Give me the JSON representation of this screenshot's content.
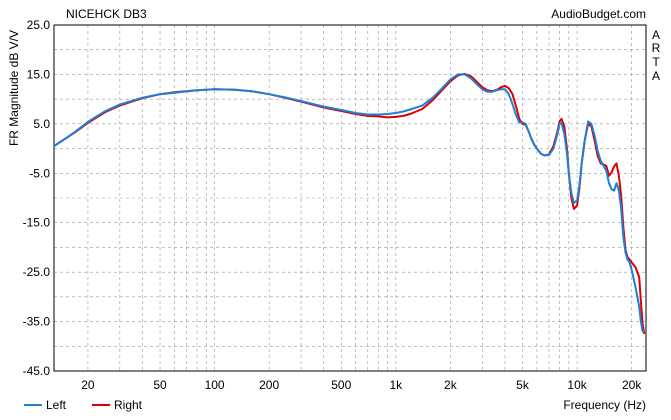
{
  "chart_data": {
    "type": "line",
    "title": "NICEHCK DB3",
    "watermark": "AudioBudget.com",
    "side_label": [
      "A",
      "R",
      "T",
      "A"
    ],
    "xlabel": "Frequency (Hz)",
    "ylabel": "FR Magnitude dB V/V",
    "x_scale": "log",
    "xlim": [
      13,
      24000
    ],
    "ylim": [
      -45,
      25
    ],
    "x_ticks": [
      {
        "value": 20,
        "label": "20"
      },
      {
        "value": 50,
        "label": "50"
      },
      {
        "value": 100,
        "label": "100"
      },
      {
        "value": 200,
        "label": "200"
      },
      {
        "value": 500,
        "label": "500"
      },
      {
        "value": 1000,
        "label": "1k"
      },
      {
        "value": 2000,
        "label": "2k"
      },
      {
        "value": 5000,
        "label": "5k"
      },
      {
        "value": 10000,
        "label": "10k"
      },
      {
        "value": 20000,
        "label": "20k"
      }
    ],
    "y_ticks": [
      {
        "value": 25,
        "label": "25.0"
      },
      {
        "value": 15,
        "label": "15.0"
      },
      {
        "value": 5,
        "label": "5.0"
      },
      {
        "value": -5,
        "label": "-5.0"
      },
      {
        "value": -15,
        "label": "-15.0"
      },
      {
        "value": -25,
        "label": "-25.0"
      },
      {
        "value": -35,
        "label": "-35.0"
      },
      {
        "value": -45,
        "label": "-45.0"
      }
    ],
    "grid": true,
    "legend_position": "bottom-left",
    "series": [
      {
        "name": "Right",
        "color": "#dd0000",
        "x": [
          13,
          15,
          17,
          20,
          25,
          30,
          40,
          50,
          60,
          80,
          100,
          130,
          160,
          200,
          250,
          300,
          400,
          500,
          600,
          700,
          800,
          900,
          1000,
          1100,
          1200,
          1400,
          1600,
          1800,
          2000,
          2200,
          2400,
          2600,
          2800,
          3000,
          3200,
          3400,
          3600,
          3800,
          4000,
          4200,
          4400,
          4600,
          4800,
          5000,
          5200,
          5400,
          5600,
          5800,
          6000,
          6300,
          6600,
          7000,
          7400,
          7800,
          8000,
          8200,
          8500,
          8800,
          9000,
          9300,
          9600,
          10000,
          10300,
          10600,
          11000,
          11500,
          12000,
          12500,
          13000,
          13500,
          14000,
          14500,
          15000,
          15500,
          16000,
          16500,
          17000,
          17500,
          18000,
          18500,
          19000,
          19500,
          20000,
          21000,
          22000,
          22500,
          23000,
          23500
        ],
        "values": [
          0.5,
          2.0,
          3.3,
          5.2,
          7.4,
          8.7,
          10.2,
          11.0,
          11.4,
          11.8,
          12.0,
          11.9,
          11.6,
          11.0,
          10.2,
          9.5,
          8.3,
          7.6,
          7.0,
          6.6,
          6.5,
          6.3,
          6.4,
          6.6,
          7.0,
          8.0,
          9.8,
          11.8,
          13.6,
          14.8,
          15.1,
          14.6,
          13.5,
          12.4,
          11.8,
          11.6,
          11.9,
          12.4,
          12.7,
          12.2,
          11.0,
          8.6,
          6.0,
          5.0,
          4.8,
          3.5,
          2.0,
          0.8,
          0.0,
          -1.0,
          -1.4,
          -1.2,
          0.5,
          3.5,
          5.5,
          6.0,
          4.5,
          0.0,
          -5.0,
          -10.0,
          -12.2,
          -11.5,
          -8.0,
          -3.0,
          1.5,
          5.0,
          4.5,
          1.5,
          -1.5,
          -3.0,
          -3.2,
          -3.5,
          -5.5,
          -4.8,
          -3.6,
          -3.0,
          -5.5,
          -9.5,
          -16.0,
          -20.5,
          -22.0,
          -22.5,
          -23.0,
          -24.0,
          -26.0,
          -31.0,
          -35.5,
          -37.5
        ]
      },
      {
        "name": "Left",
        "color": "#1e7fd8",
        "x": [
          13,
          15,
          17,
          20,
          25,
          30,
          40,
          50,
          60,
          80,
          100,
          130,
          160,
          200,
          250,
          300,
          400,
          500,
          600,
          700,
          800,
          900,
          1000,
          1100,
          1200,
          1400,
          1600,
          1800,
          2000,
          2200,
          2400,
          2600,
          2800,
          3000,
          3200,
          3400,
          3600,
          3800,
          4000,
          4200,
          4400,
          4600,
          4800,
          5000,
          5200,
          5400,
          5600,
          5800,
          6000,
          6300,
          6600,
          7000,
          7400,
          7800,
          8000,
          8200,
          8500,
          8800,
          9000,
          9300,
          9600,
          10000,
          10300,
          10600,
          11000,
          11500,
          12000,
          12500,
          13000,
          13500,
          14000,
          14500,
          15000,
          15500,
          16000,
          16500,
          17000,
          17500,
          18000,
          18500,
          19000,
          19500,
          20000,
          21000,
          22000,
          22500,
          23000,
          23500
        ],
        "values": [
          0.5,
          2.0,
          3.4,
          5.4,
          7.6,
          8.9,
          10.3,
          11.0,
          11.3,
          11.8,
          12.0,
          11.9,
          11.6,
          11.0,
          10.3,
          9.6,
          8.5,
          7.8,
          7.2,
          6.9,
          6.9,
          7.0,
          7.2,
          7.5,
          7.9,
          8.7,
          10.3,
          12.2,
          14.0,
          15.0,
          15.0,
          14.2,
          13.0,
          12.0,
          11.5,
          11.5,
          11.8,
          12.0,
          12.0,
          11.0,
          9.0,
          6.8,
          5.3,
          5.3,
          5.0,
          3.5,
          2.0,
          0.8,
          0.0,
          -1.0,
          -1.4,
          -1.3,
          0.0,
          3.0,
          5.0,
          5.2,
          3.0,
          -1.0,
          -5.0,
          -9.0,
          -11.0,
          -10.5,
          -7.5,
          -3.0,
          1.5,
          5.5,
          5.0,
          2.5,
          -0.5,
          -2.5,
          -3.5,
          -4.5,
          -7.0,
          -8.2,
          -8.5,
          -7.0,
          -8.5,
          -12.0,
          -18.0,
          -21.0,
          -22.5,
          -23.0,
          -24.5,
          -28.0,
          -32.0,
          -35.0,
          -37.0,
          -37.0
        ]
      }
    ]
  }
}
